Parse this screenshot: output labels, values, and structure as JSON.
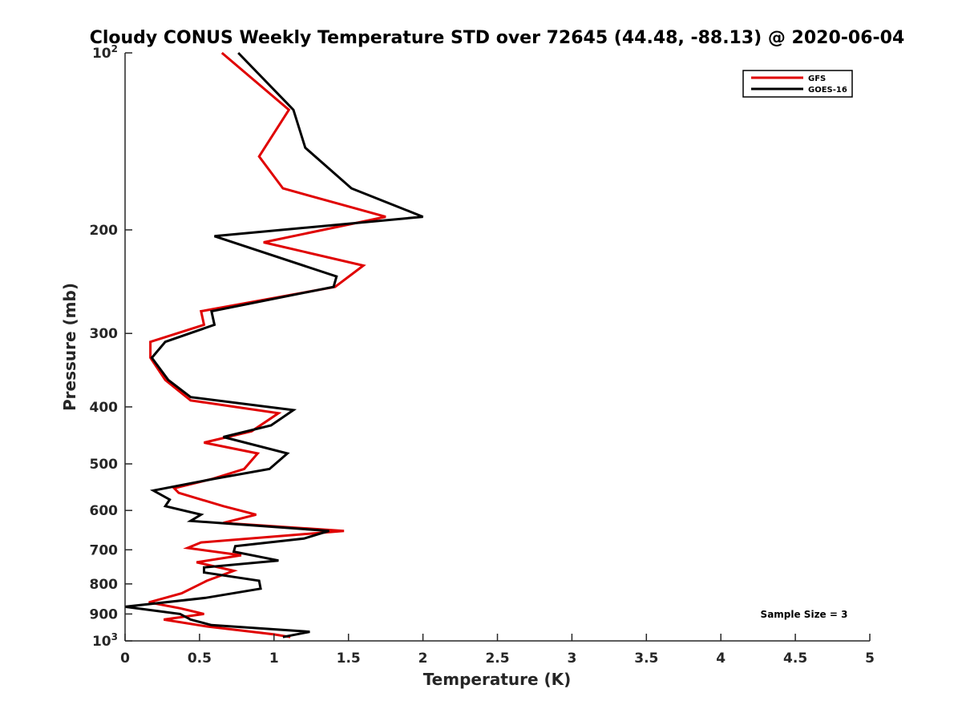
{
  "chart_data": {
    "type": "line",
    "title": "Cloudy CONUS Weekly Temperature STD over 72645 (44.48, -88.13) @ 2020-06-04",
    "xlabel": "Temperature (K)",
    "ylabel": "Pressure (mb)",
    "xlim": [
      0,
      5
    ],
    "ylim": [
      100,
      1000
    ],
    "y_scale": "log",
    "y_reversed": true,
    "grid": false,
    "legend_position": "top-right",
    "x_ticks": [
      "0",
      "0.5",
      "1",
      "1.5",
      "2",
      "2.5",
      "3",
      "3.5",
      "4",
      "4.5",
      "5"
    ],
    "y_ticks": [
      {
        "value": 100,
        "base": "10",
        "exp": "2"
      },
      {
        "value": 200,
        "label": "200"
      },
      {
        "value": 300,
        "label": "300"
      },
      {
        "value": 400,
        "label": "400"
      },
      {
        "value": 500,
        "label": "500"
      },
      {
        "value": 600,
        "label": "600"
      },
      {
        "value": 700,
        "label": "700"
      },
      {
        "value": 800,
        "label": "800"
      },
      {
        "value": 900,
        "label": "900"
      },
      {
        "value": 1000,
        "base": "10",
        "exp": "3"
      }
    ],
    "annotation": "Sample Size = 3",
    "series": [
      {
        "name": "GFS",
        "color": "#e00000",
        "points": [
          [
            0.65,
            100
          ],
          [
            1.1,
            125
          ],
          [
            0.9,
            150
          ],
          [
            1.06,
            170
          ],
          [
            1.75,
            190
          ],
          [
            0.93,
            210
          ],
          [
            1.6,
            230
          ],
          [
            1.41,
            250
          ],
          [
            0.51,
            275
          ],
          [
            0.53,
            290
          ],
          [
            0.17,
            310
          ],
          [
            0.17,
            330
          ],
          [
            0.27,
            360
          ],
          [
            0.44,
            390
          ],
          [
            1.03,
            410
          ],
          [
            0.85,
            440
          ],
          [
            0.53,
            460
          ],
          [
            0.89,
            480
          ],
          [
            0.8,
            510
          ],
          [
            0.59,
            530
          ],
          [
            0.33,
            550
          ],
          [
            0.36,
            560
          ],
          [
            0.66,
            590
          ],
          [
            0.88,
            610
          ],
          [
            0.66,
            630
          ],
          [
            1.47,
            650
          ],
          [
            0.51,
            680
          ],
          [
            0.42,
            695
          ],
          [
            0.78,
            715
          ],
          [
            0.48,
            735
          ],
          [
            0.73,
            760
          ],
          [
            0.55,
            790
          ],
          [
            0.38,
            830
          ],
          [
            0.16,
            860
          ],
          [
            0.37,
            880
          ],
          [
            0.53,
            900
          ],
          [
            0.26,
            920
          ],
          [
            0.55,
            945
          ],
          [
            1.0,
            975
          ],
          [
            1.11,
            985
          ]
        ]
      },
      {
        "name": "GOES-16",
        "color": "#000000",
        "points": [
          [
            0.76,
            100
          ],
          [
            1.13,
            125
          ],
          [
            1.21,
            145
          ],
          [
            1.52,
            170
          ],
          [
            2.0,
            190
          ],
          [
            0.6,
            205
          ],
          [
            1.42,
            240
          ],
          [
            1.4,
            250
          ],
          [
            0.58,
            275
          ],
          [
            0.6,
            290
          ],
          [
            0.27,
            310
          ],
          [
            0.18,
            330
          ],
          [
            0.29,
            360
          ],
          [
            0.44,
            385
          ],
          [
            1.13,
            405
          ],
          [
            0.98,
            430
          ],
          [
            0.66,
            450
          ],
          [
            1.09,
            480
          ],
          [
            0.97,
            510
          ],
          [
            0.6,
            530
          ],
          [
            0.19,
            555
          ],
          [
            0.3,
            575
          ],
          [
            0.27,
            590
          ],
          [
            0.51,
            610
          ],
          [
            0.44,
            625
          ],
          [
            1.37,
            650
          ],
          [
            1.2,
            670
          ],
          [
            0.74,
            690
          ],
          [
            0.73,
            705
          ],
          [
            1.03,
            730
          ],
          [
            0.53,
            750
          ],
          [
            0.53,
            765
          ],
          [
            0.9,
            790
          ],
          [
            0.91,
            815
          ],
          [
            0.54,
            845
          ],
          [
            0.0,
            875
          ],
          [
            0.37,
            900
          ],
          [
            0.44,
            920
          ],
          [
            0.58,
            940
          ],
          [
            1.24,
            965
          ],
          [
            1.06,
            985
          ]
        ]
      }
    ]
  }
}
